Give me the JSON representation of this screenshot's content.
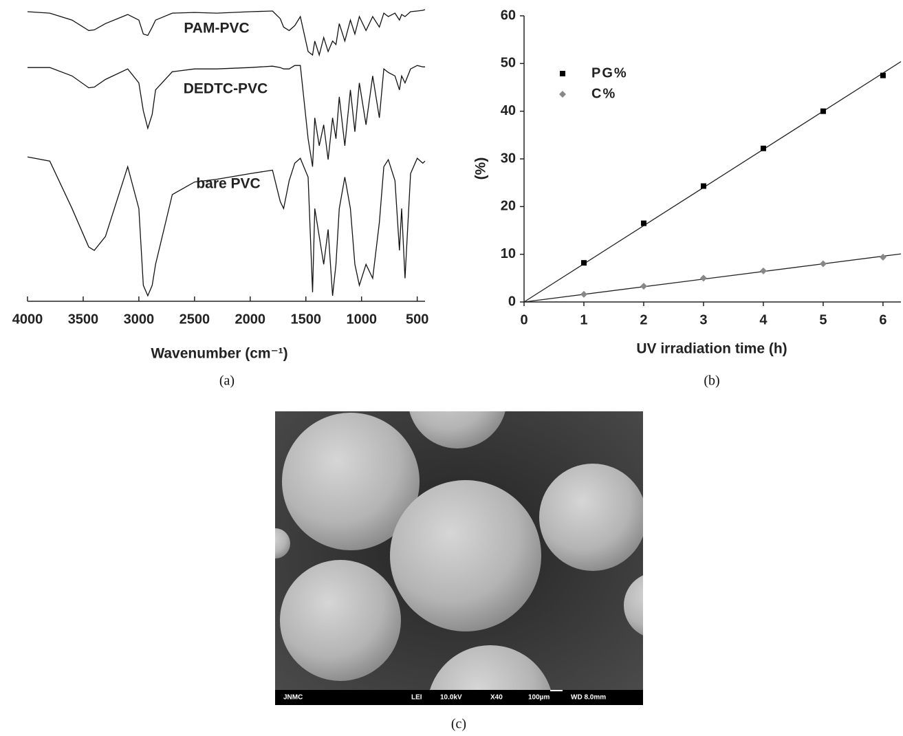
{
  "chart_data": [
    {
      "type": "line",
      "caption": "(a)",
      "x_label": "Wavenumber (cm⁻¹)",
      "x": [
        4000,
        3800,
        3600,
        3450,
        3400,
        3300,
        3100,
        3000,
        2960,
        2920,
        2880,
        2850,
        2700,
        2500,
        2300,
        2000,
        1800,
        1730,
        1700,
        1650,
        1600,
        1550,
        1480,
        1440,
        1420,
        1380,
        1340,
        1300,
        1260,
        1230,
        1200,
        1150,
        1100,
        1060,
        1020,
        960,
        900,
        840,
        800,
        760,
        700,
        660,
        640,
        610,
        560,
        500,
        450,
        430
      ],
      "xlim": [
        4000,
        430
      ],
      "xticks": [
        4000,
        3500,
        3000,
        2500,
        2000,
        1500,
        1000,
        500
      ],
      "series": [
        {
          "name": "PAM-PVC",
          "color": "#111111",
          "values": [
            422,
            420,
            410,
            395,
            396,
            405,
            418,
            410,
            390,
            388,
            400,
            410,
            420,
            421,
            420,
            422,
            423,
            412,
            400,
            395,
            402,
            415,
            365,
            360,
            380,
            360,
            385,
            365,
            380,
            375,
            405,
            380,
            410,
            390,
            415,
            395,
            415,
            400,
            420,
            415,
            420,
            410,
            418,
            415,
            422,
            423,
            424,
            425
          ]
        },
        {
          "name": "DEDTC-PVC",
          "color": "#111111",
          "values": [
            342,
            342,
            330,
            313,
            314,
            325,
            340,
            320,
            280,
            255,
            275,
            310,
            336,
            340,
            340,
            342,
            344,
            342,
            340,
            340,
            345,
            345,
            240,
            200,
            270,
            230,
            260,
            210,
            270,
            240,
            300,
            230,
            310,
            250,
            320,
            260,
            330,
            270,
            340,
            335,
            330,
            310,
            330,
            320,
            340,
            345,
            343,
            343
          ]
        },
        {
          "name": "bare PVC",
          "color": "#111111",
          "values": [
            214,
            208,
            140,
            85,
            80,
            100,
            200,
            140,
            30,
            15,
            30,
            60,
            160,
            178,
            182,
            190,
            195,
            150,
            140,
            180,
            205,
            212,
            185,
            20,
            140,
            100,
            60,
            110,
            15,
            60,
            140,
            185,
            140,
            60,
            30,
            60,
            40,
            120,
            200,
            210,
            180,
            80,
            140,
            40,
            190,
            212,
            205,
            208
          ]
        }
      ]
    },
    {
      "type": "scatter",
      "caption": "(b)",
      "x_label": "UV irradiation time (h)",
      "y_label": "(%)",
      "xlim": [
        0,
        6.3
      ],
      "xticks": [
        0,
        1,
        2,
        3,
        4,
        5,
        6
      ],
      "ylim": [
        0,
        60
      ],
      "yticks": [
        0,
        10,
        20,
        30,
        40,
        50,
        60
      ],
      "trendline": true,
      "legend": "top-left",
      "series": [
        {
          "name": "PG%",
          "color": "#000000",
          "marker": "square",
          "x": [
            1,
            2,
            3,
            4,
            5,
            6
          ],
          "values": [
            8.2,
            16.5,
            24.3,
            32.2,
            40,
            47.5
          ]
        },
        {
          "name": "C%",
          "color": "#888888",
          "marker": "diamond",
          "x": [
            1,
            2,
            3,
            4,
            5,
            6
          ],
          "values": [
            1.6,
            3.3,
            5,
            6.5,
            8,
            9.4
          ]
        }
      ]
    }
  ],
  "image": {
    "caption": "(c)",
    "info_bar": [
      "JNMC",
      "LEI",
      "10.0kV",
      "X40",
      "100µm",
      "WD 8.0mm"
    ]
  }
}
